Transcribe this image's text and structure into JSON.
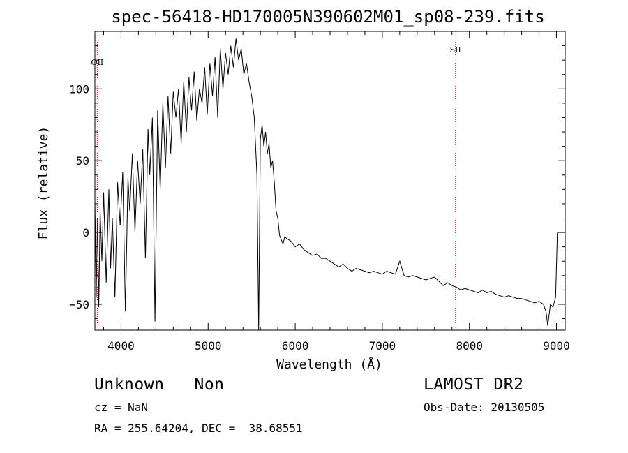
{
  "chart_data": {
    "type": "line",
    "title": "spec-56418-HD170005N390602M01_sp08-239.fits",
    "xlabel": "Wavelength (Å)",
    "ylabel": "Flux (relative)",
    "xlim": [
      3700,
      9100
    ],
    "ylim": [
      -68,
      140
    ],
    "xticks": [
      "4000",
      "5000",
      "6000",
      "7000",
      "8000",
      "9000"
    ],
    "yticks": [
      "−50",
      "0",
      "50",
      "100"
    ],
    "grid": false,
    "legend": "none",
    "line_color": "#000000",
    "series": [
      {
        "x": [
          3700,
          3715,
          3730,
          3745,
          3760,
          3780,
          3800,
          3830,
          3860,
          3880,
          3900,
          3930,
          3960,
          3990,
          4020,
          4050,
          4080,
          4100,
          4130,
          4160,
          4190,
          4220,
          4250,
          4280,
          4310,
          4330,
          4360,
          4390,
          4420,
          4450,
          4480,
          4510,
          4540,
          4570,
          4600,
          4630,
          4660,
          4690,
          4720,
          4750,
          4780,
          4810,
          4840,
          4870,
          4900,
          4930,
          4960,
          4990,
          5020,
          5050,
          5080,
          5110,
          5140,
          5170,
          5200,
          5230,
          5260,
          5290,
          5320,
          5350,
          5380,
          5410,
          5440,
          5470,
          5500,
          5530,
          5560,
          5580,
          5600,
          5620,
          5640,
          5660,
          5680,
          5700,
          5720,
          5740,
          5760,
          5780,
          5800,
          5820,
          5840,
          5860,
          5880,
          5900,
          5950,
          6000,
          6050,
          6100,
          6150,
          6200,
          6250,
          6300,
          6350,
          6400,
          6450,
          6500,
          6550,
          6600,
          6650,
          6700,
          6750,
          6800,
          6850,
          6900,
          6950,
          7000,
          7050,
          7100,
          7150,
          7200,
          7250,
          7300,
          7350,
          7400,
          7450,
          7500,
          7550,
          7600,
          7650,
          7700,
          7750,
          7800,
          7850,
          7900,
          7950,
          8000,
          8050,
          8100,
          8150,
          8200,
          8250,
          8300,
          8350,
          8400,
          8450,
          8500,
          8550,
          8600,
          8650,
          8700,
          8750,
          8800,
          8850,
          8880,
          8900,
          8930,
          8960,
          8990,
          9010
        ],
        "y": [
          22,
          -45,
          10,
          -52,
          15,
          -20,
          28,
          -35,
          30,
          -25,
          10,
          -45,
          35,
          5,
          42,
          -55,
          38,
          15,
          55,
          0,
          50,
          20,
          58,
          -18,
          72,
          40,
          80,
          -62,
          85,
          30,
          90,
          45,
          95,
          55,
          98,
          80,
          100,
          62,
          105,
          70,
          108,
          85,
          112,
          78,
          100,
          90,
          115,
          82,
          118,
          95,
          122,
          80,
          128,
          100,
          125,
          110,
          130,
          115,
          135,
          120,
          128,
          110,
          118,
          105,
          95,
          80,
          40,
          -68,
          65,
          75,
          60,
          70,
          55,
          62,
          45,
          50,
          35,
          15,
          10,
          -2,
          -5,
          -8,
          -3,
          -4,
          -6,
          -10,
          -8,
          -12,
          -14,
          -16,
          -15,
          -18,
          -18,
          -20,
          -22,
          -24,
          -22,
          -25,
          -27,
          -25,
          -26,
          -27,
          -28,
          -27,
          -28,
          -29,
          -27,
          -28,
          -29,
          -20,
          -30,
          -31,
          -30,
          -31,
          -32,
          -33,
          -32,
          -31,
          -34,
          -37,
          -35,
          -37,
          -38,
          -40,
          -39,
          -40,
          -41,
          -42,
          -40,
          -42,
          -41,
          -43,
          -44,
          -45,
          -44,
          -45,
          -46,
          -46,
          -47,
          -48,
          -49,
          -48,
          -50,
          -55,
          -65,
          -50,
          -52,
          -45,
          0
        ]
      }
    ],
    "annotations": [
      {
        "label": "OII",
        "x": 3727
      },
      {
        "label": "SII",
        "x": 7840
      }
    ]
  },
  "info": {
    "class_line": "Unknown   Non",
    "cz_line": "cz = NaN",
    "radec_line": "RA = 255.64204, DEC =  38.68551",
    "survey": "LAMOST DR2",
    "obs_date": "Obs-Date: 20130505"
  }
}
